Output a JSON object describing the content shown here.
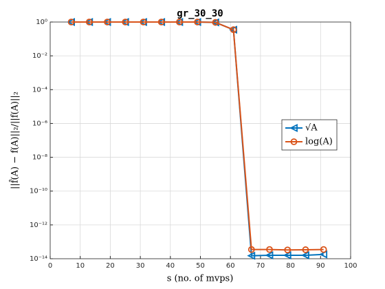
{
  "chart_data": {
    "type": "line",
    "title": "gr_30_30",
    "xlabel": "s (no. of mvps)",
    "ylabel": "||f̂(A) − f(A)||₂/||f(A)||₂",
    "x": [
      7,
      13,
      19,
      25,
      31,
      37,
      43,
      49,
      55,
      61,
      67,
      73,
      79,
      85,
      91
    ],
    "series": [
      {
        "name": "√A",
        "color": "#0072BD",
        "marker": "triangle-left",
        "values": [
          1,
          1,
          1,
          1,
          1,
          1,
          1,
          1,
          0.95,
          0.35,
          1.5e-14,
          1.6e-14,
          1.6e-14,
          1.6e-14,
          1.8e-14
        ]
      },
      {
        "name": "log(A)",
        "color": "#D95319",
        "marker": "circle",
        "values": [
          1,
          1,
          1,
          1,
          1,
          1,
          1,
          1,
          0.95,
          0.35,
          3.5e-14,
          3.5e-14,
          3.3e-14,
          3.4e-14,
          3.5e-14
        ]
      }
    ],
    "xlim": [
      0,
      100
    ],
    "xticks": [
      0,
      10,
      20,
      30,
      40,
      50,
      60,
      70,
      80,
      90,
      100
    ],
    "ylim": [
      1e-14,
      1
    ],
    "ylog": true,
    "yticks": [
      {
        "value": 1e-14,
        "label": "10⁻¹⁴"
      },
      {
        "value": 1e-12,
        "label": "10⁻¹²"
      },
      {
        "value": 1e-10,
        "label": "10⁻¹⁰"
      },
      {
        "value": 1e-08,
        "label": "10⁻⁸"
      },
      {
        "value": 1e-06,
        "label": "10⁻⁶"
      },
      {
        "value": 0.0001,
        "label": "10⁻⁴"
      },
      {
        "value": 0.01,
        "label": "10⁻²"
      },
      {
        "value": 1,
        "label": "10⁰"
      }
    ],
    "grid": true,
    "legend": "east"
  }
}
